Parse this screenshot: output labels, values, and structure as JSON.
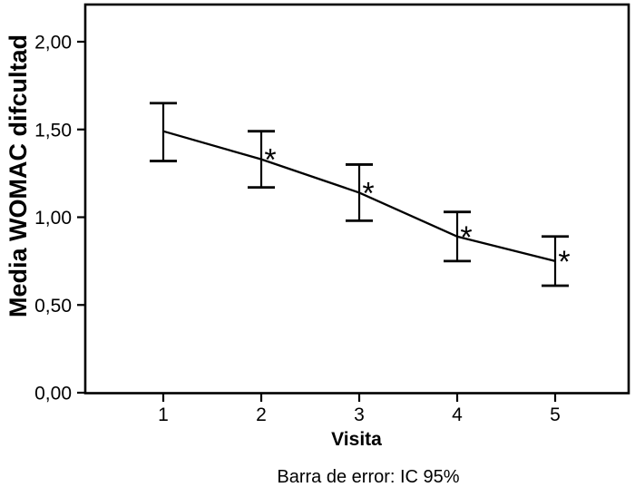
{
  "chart_data": {
    "type": "line",
    "xlabel": "Visita",
    "ylabel": "Media WOMAC difcultad",
    "caption": "Barra de error: IC 95%",
    "categories": [
      "1",
      "2",
      "3",
      "4",
      "5"
    ],
    "series": [
      {
        "name": "Media WOMAC difcultad",
        "mean": [
          1.49,
          1.33,
          1.14,
          0.89,
          0.75
        ],
        "ci95_low": [
          1.32,
          1.17,
          0.98,
          0.75,
          0.61
        ],
        "ci95_high": [
          1.65,
          1.49,
          1.3,
          1.03,
          0.89
        ],
        "significant": [
          false,
          true,
          true,
          true,
          true
        ]
      }
    ],
    "significance_marker": "*",
    "ytick_labels": [
      "0,00",
      "0,50",
      "1,00",
      "1,50",
      "2,00"
    ],
    "ytick_values": [
      0,
      0.5,
      1.0,
      1.5,
      2.0
    ],
    "ylim": [
      0,
      2.21
    ],
    "grid": false,
    "legend_position": "none",
    "error_bars": "IC 95%",
    "colors": {
      "line": "#000000",
      "frame": "#000000",
      "text": "#000000",
      "background": "#ffffff"
    }
  }
}
